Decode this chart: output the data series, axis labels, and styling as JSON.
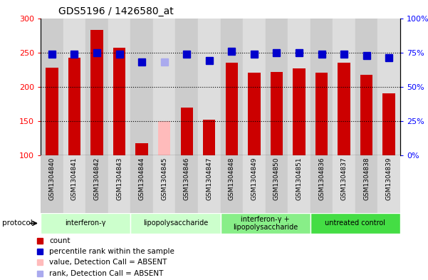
{
  "title": "GDS5196 / 1426580_at",
  "samples": [
    "GSM1304840",
    "GSM1304841",
    "GSM1304842",
    "GSM1304843",
    "GSM1304844",
    "GSM1304845",
    "GSM1304846",
    "GSM1304847",
    "GSM1304848",
    "GSM1304849",
    "GSM1304850",
    "GSM1304851",
    "GSM1304836",
    "GSM1304837",
    "GSM1304838",
    "GSM1304839"
  ],
  "counts": [
    228,
    242,
    283,
    257,
    118,
    150,
    170,
    152,
    235,
    221,
    222,
    227,
    221,
    235,
    217,
    190
  ],
  "ranks": [
    74,
    74,
    75,
    74,
    68,
    68,
    74,
    69,
    76,
    74,
    75,
    75,
    74,
    74,
    73,
    71
  ],
  "absent_mask": [
    false,
    false,
    false,
    false,
    false,
    true,
    false,
    false,
    false,
    false,
    false,
    false,
    false,
    false,
    false,
    false
  ],
  "absent_rank_mask": [
    false,
    false,
    false,
    false,
    false,
    true,
    false,
    false,
    false,
    false,
    false,
    false,
    false,
    false,
    false,
    false
  ],
  "bar_color_present": "#cc0000",
  "bar_color_absent": "#ffbbbb",
  "rank_color_present": "#0000cc",
  "rank_color_absent": "#aaaaee",
  "ylim_left": [
    100,
    300
  ],
  "ylim_right": [
    0,
    100
  ],
  "yticks_left": [
    100,
    150,
    200,
    250,
    300
  ],
  "yticks_right": [
    0,
    25,
    50,
    75,
    100
  ],
  "ytick_labels_right": [
    "0%",
    "25%",
    "50%",
    "75%",
    "100%"
  ],
  "groups": [
    {
      "label": "interferon-γ",
      "start": 0,
      "end": 4,
      "color": "#ccffcc"
    },
    {
      "label": "lipopolysaccharide",
      "start": 4,
      "end": 8,
      "color": "#ccffcc"
    },
    {
      "label": "interferon-γ +\nlipopolysaccharide",
      "start": 8,
      "end": 12,
      "color": "#88ee88"
    },
    {
      "label": "untreated control",
      "start": 12,
      "end": 16,
      "color": "#44dd44"
    }
  ],
  "col_shade_even": "#cccccc",
  "col_shade_odd": "#dddddd",
  "plot_bg": "#ffffff",
  "grid_color": "#000000",
  "rank_marker_size": 7,
  "bar_width": 0.55
}
